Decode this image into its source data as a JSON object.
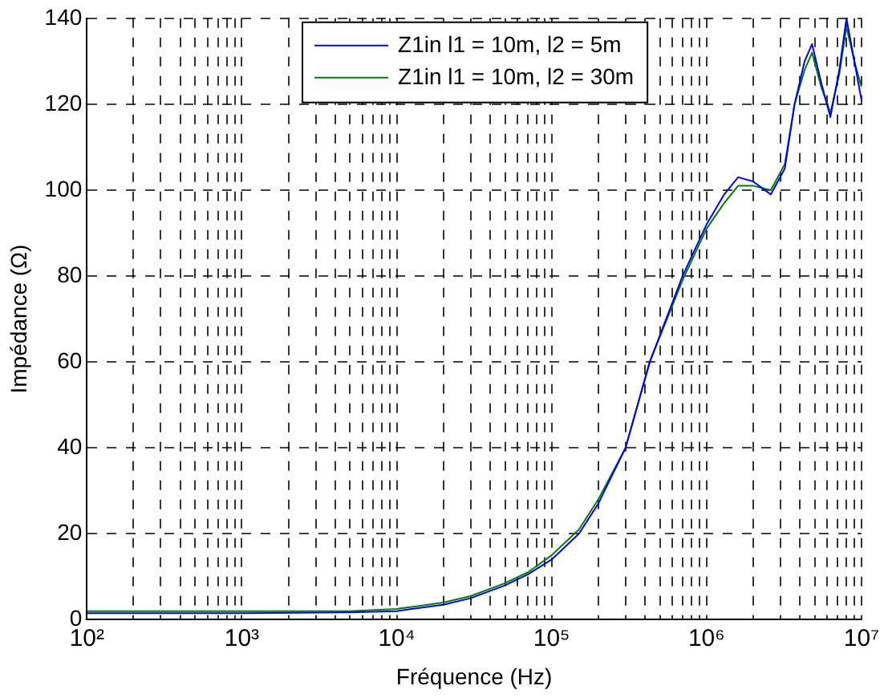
{
  "chart_data": {
    "type": "line",
    "xlabel": "Fréquence (Hz)",
    "ylabel": "Impédance (Ω)",
    "log": "x",
    "grid": true,
    "line_style": "solid",
    "marker": "none",
    "legend": "top",
    "xlim": [
      100,
      10000000
    ],
    "ylim": [
      0,
      140
    ],
    "yticks": [
      0,
      20,
      40,
      60,
      80,
      100,
      120,
      140
    ],
    "xticks": [
      {
        "value": 100,
        "label": "10²"
      },
      {
        "value": 200,
        "label": null
      },
      {
        "value": 300,
        "label": null
      },
      {
        "value": 400,
        "label": null
      },
      {
        "value": 500,
        "label": null
      },
      {
        "value": 600,
        "label": null
      },
      {
        "value": 700,
        "label": null
      },
      {
        "value": 800,
        "label": null
      },
      {
        "value": 900,
        "label": null
      },
      {
        "value": 1000,
        "label": "10³"
      },
      {
        "value": 2000,
        "label": null
      },
      {
        "value": 3000,
        "label": null
      },
      {
        "value": 4000,
        "label": null
      },
      {
        "value": 5000,
        "label": null
      },
      {
        "value": 6000,
        "label": null
      },
      {
        "value": 7000,
        "label": null
      },
      {
        "value": 8000,
        "label": null
      },
      {
        "value": 9000,
        "label": null
      },
      {
        "value": 10000,
        "label": "10⁴"
      },
      {
        "value": 20000,
        "label": null
      },
      {
        "value": 30000,
        "label": null
      },
      {
        "value": 40000,
        "label": null
      },
      {
        "value": 50000,
        "label": null
      },
      {
        "value": 60000,
        "label": null
      },
      {
        "value": 70000,
        "label": null
      },
      {
        "value": 80000,
        "label": null
      },
      {
        "value": 90000,
        "label": null
      },
      {
        "value": 100000,
        "label": "10⁵"
      },
      {
        "value": 200000,
        "label": null
      },
      {
        "value": 300000,
        "label": null
      },
      {
        "value": 400000,
        "label": null
      },
      {
        "value": 500000,
        "label": null
      },
      {
        "value": 600000,
        "label": null
      },
      {
        "value": 700000,
        "label": null
      },
      {
        "value": 800000,
        "label": null
      },
      {
        "value": 900000,
        "label": null
      },
      {
        "value": 1000000,
        "label": "10⁶"
      },
      {
        "value": 2000000,
        "label": null
      },
      {
        "value": 3000000,
        "label": null
      },
      {
        "value": 4000000,
        "label": null
      },
      {
        "value": 5000000,
        "label": null
      },
      {
        "value": 6000000,
        "label": null
      },
      {
        "value": 7000000,
        "label": null
      },
      {
        "value": 8000000,
        "label": null
      },
      {
        "value": 9000000,
        "label": null
      },
      {
        "value": 10000000,
        "label": "10⁷"
      }
    ],
    "x": [
      100,
      1000,
      5000,
      10000,
      20000,
      30000,
      50000,
      70000,
      100000,
      150000,
      200000,
      300000,
      430000,
      700000,
      1000000,
      1300000,
      1600000,
      2000000,
      2600000,
      3200000,
      3700000,
      4300000,
      4800000,
      5500000,
      6300000,
      7200000,
      8000000,
      9000000,
      10000000
    ],
    "series": [
      {
        "name": "Z1in l1 = 10m, l2 = 5m",
        "color": "#0000ff",
        "values": [
          1.5,
          1.5,
          1.7,
          2,
          3.5,
          5,
          8,
          10.5,
          14,
          20,
          27,
          40,
          60,
          80,
          92,
          99,
          103,
          102,
          99,
          105,
          120,
          130,
          134,
          125,
          117,
          128,
          140,
          130,
          121
        ]
      },
      {
        "name": "Z1in l1 = 10m, l2 = 30m",
        "color": "#008000",
        "values": [
          2,
          2,
          2,
          2.5,
          4,
          5.5,
          8.5,
          11,
          15,
          21,
          28,
          40,
          60,
          79,
          91,
          97,
          101,
          101,
          100,
          106,
          120,
          128,
          132,
          124,
          118,
          127,
          138,
          130,
          124
        ]
      }
    ]
  }
}
